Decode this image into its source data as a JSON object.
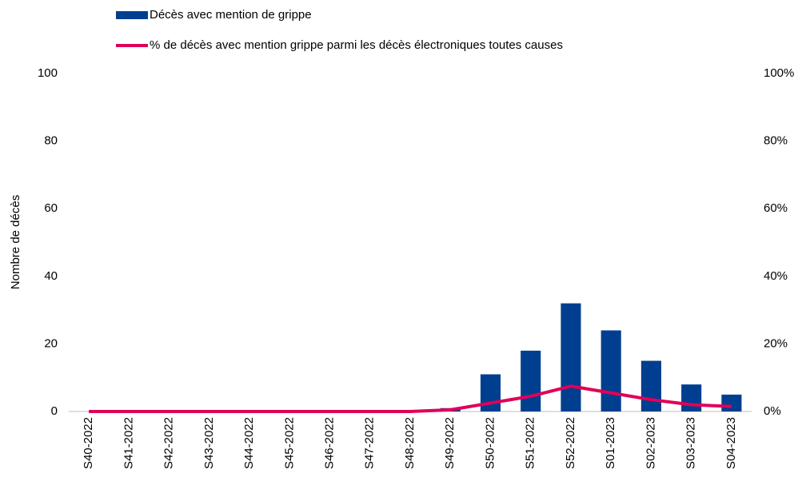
{
  "chart_data": {
    "type": "bar_line",
    "y_label": "Nombre de décès",
    "categories": [
      "S40-2022",
      "S41-2022",
      "S42-2022",
      "S43-2022",
      "S44-2022",
      "S45-2022",
      "S46-2022",
      "S47-2022",
      "S48-2022",
      "S49-2022",
      "S50-2022",
      "S51-2022",
      "S52-2022",
      "S01-2023",
      "S02-2023",
      "S03-2023",
      "S04-2023"
    ],
    "series": [
      {
        "name": "Décès avec mention de grippe",
        "type": "bar",
        "color": "#003f8f",
        "values": [
          0,
          0,
          0,
          0,
          0,
          0,
          0,
          0,
          0,
          1,
          11,
          18,
          32,
          24,
          15,
          8,
          5
        ]
      },
      {
        "name": "% de décès avec mention grippe parmi les décès électroniques toutes causes",
        "type": "line",
        "axis": "y2",
        "color": "#e0005a",
        "values": [
          0,
          0,
          0,
          0,
          0,
          0,
          0,
          0,
          0,
          0.5,
          2.5,
          4.5,
          7.5,
          5.5,
          3.5,
          2,
          1.5
        ]
      }
    ],
    "ylim": [
      0,
      100
    ],
    "yticks": [
      0,
      20,
      40,
      60,
      80,
      100
    ],
    "y2lim": [
      0,
      100
    ],
    "y2ticks": [
      {
        "value": 0,
        "label": "0%"
      },
      {
        "value": 20,
        "label": "20%"
      },
      {
        "value": 40,
        "label": "40%"
      },
      {
        "value": 60,
        "label": "60%"
      },
      {
        "value": 80,
        "label": "80%"
      },
      {
        "value": 100,
        "label": "100%"
      }
    ],
    "grid": false
  }
}
